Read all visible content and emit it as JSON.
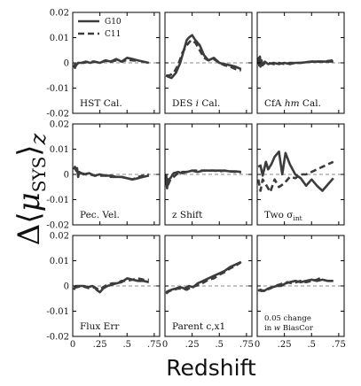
{
  "chart_data": {
    "type": "line",
    "ylabel": "Δ⟨μSYS⟩z",
    "xlabel": "Redshift",
    "xlim": [
      0,
      0.8
    ],
    "ylim": [
      -0.02,
      0.02
    ],
    "x_ticks": [
      "0",
      ".25",
      ".5",
      ".75"
    ],
    "y_ticks": [
      "0.02",
      "0.01",
      "0",
      "-0.01",
      "-0.02"
    ],
    "legend": {
      "location": "top-left of first panel",
      "entries": [
        "G10",
        "C11"
      ]
    },
    "panels": [
      {
        "label": "HST Cal.",
        "series": [
          {
            "name": "G10",
            "x": [
              0.01,
              0.02,
              0.03,
              0.05,
              0.08,
              0.12,
              0.16,
              0.2,
              0.25,
              0.3,
              0.35,
              0.4,
              0.45,
              0.5,
              0.55,
              0.6,
              0.65,
              0.7
            ],
            "y": [
              -0.001,
              -0.002,
              -0.001,
              0.0,
              0.0,
              0.0005,
              0.0,
              0.0005,
              0.0,
              0.001,
              0.0005,
              0.0015,
              0.0005,
              0.002,
              0.0015,
              0.001,
              0.0005,
              0.0
            ]
          },
          {
            "name": "C11",
            "x": [
              0.01,
              0.03,
              0.05,
              0.1,
              0.15,
              0.2,
              0.25,
              0.3,
              0.35,
              0.4,
              0.45,
              0.5,
              0.55,
              0.6
            ],
            "y": [
              -0.0005,
              -0.001,
              0.0,
              0.0,
              0.0005,
              0.0005,
              0.0,
              0.0008,
              0.0005,
              0.001,
              0.0005,
              0.0012,
              0.001,
              0.0008
            ]
          }
        ]
      },
      {
        "label": "DES i Cal.",
        "label_parts": [
          "DES ",
          "i",
          " Cal."
        ],
        "series": [
          {
            "name": "G10",
            "x": [
              0.01,
              0.03,
              0.06,
              0.1,
              0.14,
              0.18,
              0.2,
              0.22,
              0.25,
              0.28,
              0.32,
              0.36,
              0.4,
              0.45,
              0.5,
              0.55,
              0.6,
              0.65,
              0.7
            ],
            "y": [
              -0.005,
              -0.0055,
              -0.006,
              -0.004,
              0.0,
              0.006,
              0.009,
              0.01,
              0.011,
              0.009,
              0.007,
              0.003,
              0.001,
              0.002,
              0.0,
              -0.0005,
              -0.001,
              -0.0015,
              -0.0025
            ]
          },
          {
            "name": "C11",
            "x": [
              0.01,
              0.04,
              0.08,
              0.12,
              0.16,
              0.2,
              0.24,
              0.28,
              0.32,
              0.36,
              0.4,
              0.45,
              0.5,
              0.55,
              0.6,
              0.65,
              0.7
            ],
            "y": [
              -0.005,
              -0.005,
              -0.004,
              -0.001,
              0.004,
              0.007,
              0.009,
              0.008,
              0.005,
              0.002,
              0.001,
              0.0015,
              0.0,
              -0.001,
              -0.0015,
              -0.0025,
              -0.003
            ]
          }
        ]
      },
      {
        "label": "CfA hm Cal.",
        "label_parts": [
          "CfA ",
          "hm",
          " Cal."
        ],
        "series": [
          {
            "name": "G10",
            "x": [
              0.01,
              0.015,
              0.02,
              0.025,
              0.03,
              0.04,
              0.05,
              0.07,
              0.1,
              0.15,
              0.2,
              0.25,
              0.3,
              0.35,
              0.4,
              0.5,
              0.6,
              0.7
            ],
            "y": [
              0.0,
              0.002,
              -0.001,
              0.0025,
              -0.0015,
              0.001,
              -0.001,
              0.0005,
              -0.0005,
              0.0,
              -0.0005,
              0.0,
              -0.0005,
              0.0,
              0.0,
              0.0005,
              0.0005,
              0.0005
            ]
          },
          {
            "name": "C11",
            "x": [
              0.01,
              0.02,
              0.03,
              0.05,
              0.1,
              0.15,
              0.2,
              0.25,
              0.3,
              0.4,
              0.5,
              0.6,
              0.7
            ],
            "y": [
              0.0005,
              -0.001,
              0.001,
              -0.0005,
              0.0,
              -0.0005,
              0.0,
              -0.0005,
              0.0,
              0.0,
              0.0005,
              0.0005,
              0.001
            ]
          }
        ]
      },
      {
        "label": "Pec. Vel.",
        "series": [
          {
            "name": "G10",
            "x": [
              0.01,
              0.02,
              0.03,
              0.04,
              0.05,
              0.06,
              0.08,
              0.1,
              0.15,
              0.2,
              0.25,
              0.3,
              0.35,
              0.4,
              0.45,
              0.5,
              0.55,
              0.6,
              0.65,
              0.7
            ],
            "y": [
              0.002,
              0.003,
              0.0015,
              0.0025,
              -0.001,
              0.001,
              0.0005,
              0.0,
              0.0005,
              -0.0005,
              0.0,
              -0.0005,
              -0.0005,
              -0.001,
              -0.001,
              -0.0015,
              -0.002,
              -0.0015,
              -0.001,
              -0.0005
            ]
          },
          {
            "name": "C11",
            "x": [
              0.01,
              0.03,
              0.05,
              0.08,
              0.12,
              0.16,
              0.2,
              0.25,
              0.3,
              0.35,
              0.4,
              0.45,
              0.5,
              0.55,
              0.6,
              0.65,
              0.7
            ],
            "y": [
              0.0025,
              0.002,
              0.0005,
              0.0005,
              0.0,
              0.0,
              -0.0005,
              -0.0005,
              -0.0005,
              -0.001,
              -0.001,
              -0.001,
              -0.0015,
              -0.002,
              -0.001,
              -0.0005,
              0.0
            ]
          }
        ]
      },
      {
        "label": "z Shift",
        "series": [
          {
            "name": "G10",
            "x": [
              0.01,
              0.015,
              0.02,
              0.03,
              0.05,
              0.08,
              0.12,
              0.16,
              0.2,
              0.25,
              0.3,
              0.35,
              0.4,
              0.45,
              0.5,
              0.55,
              0.6,
              0.65,
              0.7
            ],
            "y": [
              0.0,
              -0.004,
              -0.0055,
              -0.002,
              -0.0015,
              0.0005,
              0.001,
              0.0005,
              0.001,
              0.0015,
              0.001,
              0.0015,
              0.0015,
              0.0015,
              0.0015,
              0.0015,
              0.0012,
              0.0012,
              0.001
            ]
          },
          {
            "name": "C11",
            "x": [
              0.01,
              0.02,
              0.03,
              0.05,
              0.08,
              0.12,
              0.16,
              0.2,
              0.25,
              0.3,
              0.35,
              0.4,
              0.45,
              0.5,
              0.55,
              0.6,
              0.65,
              0.7
            ],
            "y": [
              0.0,
              -0.003,
              -0.004,
              -0.002,
              -0.001,
              0.0005,
              0.001,
              0.001,
              0.0015,
              0.0015,
              0.0015,
              0.0015,
              0.0015,
              0.0012,
              0.0015,
              0.0012,
              0.001,
              0.0008
            ]
          }
        ]
      },
      {
        "label": "Two σint",
        "label_parts": [
          "Two σ",
          "int"
        ],
        "series": [
          {
            "name": "G10",
            "x": [
              0.01,
              0.03,
              0.05,
              0.08,
              0.1,
              0.13,
              0.16,
              0.2,
              0.23,
              0.26,
              0.3,
              0.35,
              0.4,
              0.45,
              0.5,
              0.55,
              0.6,
              0.65,
              0.7
            ],
            "y": [
              0.003,
              0.0035,
              -0.0005,
              0.005,
              0.002,
              0.004,
              0.007,
              0.009,
              0.0,
              0.0085,
              0.004,
              0.0,
              -0.0015,
              -0.0045,
              -0.002,
              -0.0045,
              -0.0065,
              -0.004,
              -0.0015
            ]
          },
          {
            "name": "C11",
            "x": [
              0.01,
              0.03,
              0.05,
              0.08,
              0.12,
              0.16,
              0.2,
              0.25,
              0.3,
              0.35,
              0.4,
              0.45,
              0.5,
              0.55,
              0.6,
              0.65,
              0.7
            ],
            "y": [
              -0.002,
              -0.0065,
              -0.002,
              -0.004,
              -0.007,
              -0.002,
              -0.005,
              -0.0035,
              -0.001,
              -0.0015,
              0.0,
              0.0,
              0.001,
              0.002,
              0.003,
              0.004,
              0.005
            ]
          }
        ]
      },
      {
        "label": "Flux Err",
        "series": [
          {
            "name": "G10",
            "x": [
              0.01,
              0.03,
              0.06,
              0.1,
              0.14,
              0.18,
              0.2,
              0.22,
              0.25,
              0.28,
              0.32,
              0.36,
              0.4,
              0.45,
              0.5,
              0.55,
              0.6,
              0.65,
              0.7
            ],
            "y": [
              -0.0015,
              0.0,
              0.0,
              0.0,
              -0.0005,
              0.0,
              -0.0005,
              -0.0015,
              -0.0025,
              -0.001,
              0.0,
              0.0005,
              0.001,
              0.0015,
              0.003,
              0.0025,
              0.002,
              0.002,
              0.0015
            ]
          },
          {
            "name": "C11",
            "x": [
              0.01,
              0.04,
              0.08,
              0.12,
              0.16,
              0.2,
              0.24,
              0.28,
              0.32,
              0.36,
              0.4,
              0.45,
              0.5,
              0.55,
              0.6,
              0.65,
              0.7
            ],
            "y": [
              -0.0005,
              -0.0005,
              0.0,
              -0.0005,
              -0.001,
              -0.0005,
              -0.0015,
              -0.0005,
              0.0005,
              0.001,
              0.001,
              0.002,
              0.002,
              0.0025,
              0.003,
              0.0025,
              0.0025
            ]
          }
        ]
      },
      {
        "label": "Parent c,x1",
        "series": [
          {
            "name": "G10",
            "x": [
              0.01,
              0.03,
              0.06,
              0.1,
              0.14,
              0.18,
              0.22,
              0.26,
              0.3,
              0.35,
              0.4,
              0.45,
              0.5,
              0.55,
              0.6,
              0.65,
              0.7
            ],
            "y": [
              -0.0025,
              -0.002,
              -0.0015,
              -0.001,
              -0.0005,
              -0.001,
              0.0,
              -0.0005,
              0.001,
              0.002,
              0.003,
              0.004,
              0.005,
              0.006,
              0.0075,
              0.0085,
              0.0095
            ]
          },
          {
            "name": "C11",
            "x": [
              0.01,
              0.04,
              0.08,
              0.12,
              0.16,
              0.2,
              0.24,
              0.28,
              0.32,
              0.36,
              0.4,
              0.45,
              0.5,
              0.55,
              0.6,
              0.65,
              0.7
            ],
            "y": [
              -0.003,
              -0.002,
              -0.0015,
              -0.001,
              -0.001,
              -0.0015,
              -0.0005,
              0.0,
              0.0005,
              0.0015,
              0.0025,
              0.003,
              0.0045,
              0.0055,
              0.007,
              0.008,
              0.0095
            ]
          }
        ]
      },
      {
        "label": "0.05 change in w BiasCor",
        "label_parts": [
          "0.05 change",
          "in ",
          "w",
          " BiasCor"
        ],
        "series": [
          {
            "name": "G10",
            "x": [
              0.01,
              0.03,
              0.06,
              0.1,
              0.14,
              0.18,
              0.22,
              0.26,
              0.3,
              0.35,
              0.4,
              0.45,
              0.5,
              0.55,
              0.6,
              0.65,
              0.7
            ],
            "y": [
              -0.002,
              -0.0015,
              -0.002,
              -0.001,
              -0.0005,
              0.0,
              0.0,
              0.001,
              0.0015,
              0.002,
              0.0015,
              0.002,
              0.0025,
              0.002,
              0.0025,
              0.002,
              0.002
            ]
          },
          {
            "name": "C11",
            "x": [
              0.01,
              0.04,
              0.08,
              0.12,
              0.16,
              0.2,
              0.24,
              0.28,
              0.32,
              0.36,
              0.4,
              0.45,
              0.5,
              0.55,
              0.6
            ],
            "y": [
              -0.0015,
              -0.002,
              -0.0015,
              -0.001,
              0.0,
              0.0005,
              0.001,
              0.0015,
              0.001,
              0.0015,
              0.002,
              0.0015,
              0.002,
              0.0025,
              0.0035
            ]
          }
        ]
      }
    ]
  }
}
